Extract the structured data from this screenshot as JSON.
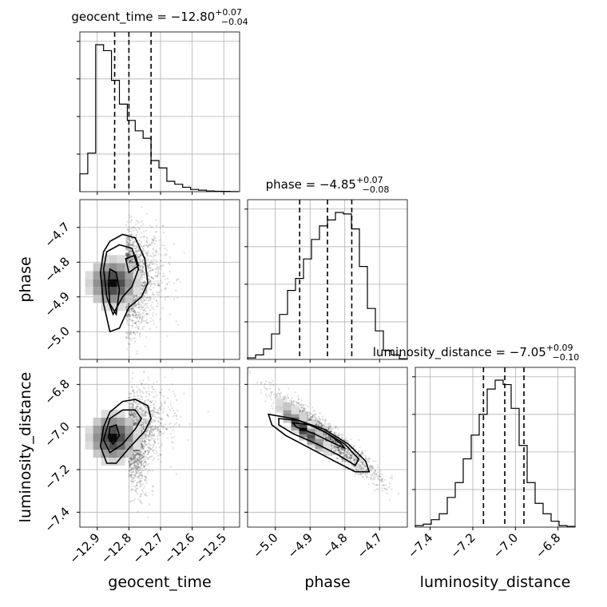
{
  "chart_data": {
    "type": "corner",
    "parameters": [
      "geocent_time",
      "phase",
      "luminosity_distance"
    ],
    "diagonal": [
      {
        "param": "geocent_time",
        "title_main": "geocent_time = −12.80",
        "title_sup": "+0.07",
        "title_sub": "−0.04",
        "median": -12.8,
        "q_low": -12.845,
        "q_high": -12.73,
        "range": [
          -12.955,
          -12.45
        ],
        "bins": [
          -12.955,
          -12.93,
          -12.905,
          -12.88,
          -12.855,
          -12.83,
          -12.805,
          -12.78,
          -12.755,
          -12.73,
          -12.705,
          -12.68,
          -12.655,
          -12.63,
          -12.605,
          -12.58,
          -12.555,
          -12.53,
          -12.505,
          -12.48,
          -12.455
        ],
        "counts": [
          0.12,
          0.26,
          0.99,
          0.95,
          0.75,
          0.59,
          0.48,
          0.41,
          0.36,
          0.21,
          0.16,
          0.07,
          0.05,
          0.03,
          0.015,
          0.01,
          0.005,
          0.003,
          0.002,
          0.0005
        ]
      },
      {
        "param": "phase",
        "title_main": "phase = −4.85",
        "title_sup": "+0.07",
        "title_sub": "−0.08",
        "median": -4.85,
        "q_low": -4.93,
        "q_high": -4.78,
        "range": [
          -5.08,
          -4.62
        ],
        "bins": [
          -5.08,
          -5.057,
          -5.034,
          -5.011,
          -4.988,
          -4.965,
          -4.942,
          -4.919,
          -4.896,
          -4.873,
          -4.85,
          -4.827,
          -4.804,
          -4.781,
          -4.758,
          -4.735,
          -4.712,
          -4.689,
          -4.666,
          -4.643,
          -4.62
        ],
        "counts": [
          0.01,
          0.03,
          0.07,
          0.17,
          0.3,
          0.46,
          0.54,
          0.67,
          0.8,
          0.89,
          0.93,
          0.98,
          0.97,
          0.87,
          0.62,
          0.34,
          0.19,
          0.06,
          0.03,
          0.005
        ]
      },
      {
        "param": "luminosity_distance",
        "title_main": "luminosity_distance = −7.05",
        "title_sup": "+0.09",
        "title_sub": "−0.10",
        "median": -7.05,
        "q_low": -7.15,
        "q_high": -6.96,
        "range": [
          -7.47,
          -6.72
        ],
        "bins": [
          -7.47,
          -7.4325,
          -7.395,
          -7.3575,
          -7.32,
          -7.2825,
          -7.245,
          -7.2075,
          -7.17,
          -7.1325,
          -7.095,
          -7.0575,
          -7.02,
          -6.9825,
          -6.945,
          -6.9075,
          -6.87,
          -6.8325,
          -6.795,
          -6.7575,
          -6.72
        ],
        "counts": [
          0.01,
          0.02,
          0.05,
          0.09,
          0.2,
          0.3,
          0.46,
          0.62,
          0.76,
          0.93,
          0.99,
          0.96,
          0.8,
          0.55,
          0.3,
          0.16,
          0.09,
          0.04,
          0.01,
          0.005
        ]
      }
    ],
    "pairs": [
      {
        "x": "geocent_time",
        "y": "phase",
        "xlim": [
          -12.955,
          -12.45
        ],
        "ylim": [
          -5.08,
          -4.62
        ],
        "center": [
          -12.81,
          -4.85
        ],
        "sx": 0.045,
        "sy": 0.07,
        "rho": 0.1,
        "density_peak": [
          -12.85,
          -4.86
        ],
        "contours": [
          [
            [
              -12.86,
              -4.74
            ],
            [
              -12.82,
              -4.72
            ],
            [
              -12.78,
              -4.73
            ],
            [
              -12.75,
              -4.79
            ],
            [
              -12.74,
              -4.86
            ],
            [
              -12.76,
              -4.9
            ],
            [
              -12.8,
              -4.93
            ],
            [
              -12.83,
              -4.99
            ],
            [
              -12.86,
              -5.0
            ],
            [
              -12.88,
              -4.92
            ],
            [
              -12.89,
              -4.83
            ],
            [
              -12.88,
              -4.77
            ]
          ],
          [
            [
              -12.87,
              -4.77
            ],
            [
              -12.83,
              -4.75
            ],
            [
              -12.79,
              -4.76
            ],
            [
              -12.77,
              -4.82
            ],
            [
              -12.79,
              -4.87
            ],
            [
              -12.82,
              -4.9
            ],
            [
              -12.85,
              -4.95
            ],
            [
              -12.87,
              -4.9
            ],
            [
              -12.88,
              -4.82
            ]
          ],
          [
            [
              -12.86,
              -4.82
            ],
            [
              -12.84,
              -4.83
            ],
            [
              -12.83,
              -4.88
            ],
            [
              -12.84,
              -4.95
            ],
            [
              -12.86,
              -4.92
            ],
            [
              -12.865,
              -4.86
            ]
          ],
          [
            [
              -12.81,
              -4.79
            ],
            [
              -12.78,
              -4.78
            ],
            [
              -12.77,
              -4.81
            ],
            [
              -12.8,
              -4.83
            ]
          ]
        ]
      },
      {
        "x": "geocent_time",
        "y": "luminosity_distance",
        "xlim": [
          -12.955,
          -12.45
        ],
        "ylim": [
          -7.47,
          -6.72
        ],
        "center": [
          -12.8,
          -7.05
        ],
        "sx": 0.045,
        "sy": 0.11,
        "rho": 0.45,
        "density_peak": [
          -12.85,
          -7.05
        ],
        "contours": [
          [
            [
              -12.86,
              -6.93
            ],
            [
              -12.82,
              -6.88
            ],
            [
              -12.78,
              -6.87
            ],
            [
              -12.74,
              -6.9
            ],
            [
              -12.73,
              -6.96
            ],
            [
              -12.75,
              -7.02
            ],
            [
              -12.8,
              -7.1
            ],
            [
              -12.84,
              -7.17
            ],
            [
              -12.87,
              -7.17
            ],
            [
              -12.89,
              -7.09
            ],
            [
              -12.88,
              -7.0
            ]
          ],
          [
            [
              -12.86,
              -6.96
            ],
            [
              -12.82,
              -6.92
            ],
            [
              -12.78,
              -6.92
            ],
            [
              -12.76,
              -6.96
            ],
            [
              -12.78,
              -7.01
            ],
            [
              -12.82,
              -7.08
            ],
            [
              -12.86,
              -7.12
            ],
            [
              -12.88,
              -7.06
            ]
          ],
          [
            [
              -12.86,
              -7.0
            ],
            [
              -12.84,
              -6.99
            ],
            [
              -12.83,
              -7.04
            ],
            [
              -12.85,
              -7.08
            ],
            [
              -12.865,
              -7.05
            ]
          ]
        ]
      },
      {
        "x": "phase",
        "y": "luminosity_distance",
        "xlim": [
          -5.08,
          -4.62
        ],
        "ylim": [
          -7.47,
          -6.72
        ],
        "center": [
          -4.85,
          -7.05
        ],
        "sx": 0.075,
        "sy": 0.1,
        "rho": -0.95,
        "density_peak": [
          -4.92,
          -7.0
        ],
        "contours": [
          [
            [
              -5.02,
              -6.94
            ],
            [
              -4.95,
              -6.96
            ],
            [
              -4.86,
              -7.01
            ],
            [
              -4.79,
              -7.08
            ],
            [
              -4.74,
              -7.16
            ],
            [
              -4.73,
              -7.21
            ],
            [
              -4.77,
              -7.21
            ],
            [
              -4.83,
              -7.16
            ],
            [
              -4.9,
              -7.1
            ],
            [
              -4.97,
              -7.04
            ],
            [
              -5.01,
              -6.99
            ]
          ],
          [
            [
              -4.99,
              -6.96
            ],
            [
              -4.93,
              -6.97
            ],
            [
              -4.86,
              -7.02
            ],
            [
              -4.8,
              -7.08
            ],
            [
              -4.76,
              -7.15
            ],
            [
              -4.77,
              -7.18
            ],
            [
              -4.82,
              -7.13
            ],
            [
              -4.88,
              -7.08
            ],
            [
              -4.95,
              -7.03
            ],
            [
              -4.99,
              -6.99
            ]
          ],
          [
            [
              -4.95,
              -6.98
            ],
            [
              -4.9,
              -6.99
            ],
            [
              -4.85,
              -7.03
            ],
            [
              -4.81,
              -7.08
            ],
            [
              -4.8,
              -7.1
            ],
            [
              -4.84,
              -7.07
            ],
            [
              -4.89,
              -7.03
            ],
            [
              -4.94,
              -7.0
            ]
          ]
        ]
      }
    ],
    "axis_labels": {
      "geocent_time": "geocent_time",
      "phase": "phase",
      "luminosity_distance": "luminosity_distance"
    },
    "ticks": {
      "geocent_time": [
        "−12.9",
        "−12.8",
        "−12.7",
        "−12.6",
        "−12.5"
      ],
      "phase": [
        "−5.0",
        "−4.9",
        "−4.8",
        "−4.7"
      ],
      "luminosity_distance": [
        "−7.4",
        "−7.2",
        "−7.0",
        "−6.8"
      ]
    },
    "tick_values": {
      "geocent_time": [
        -12.9,
        -12.8,
        -12.7,
        -12.6,
        -12.5
      ],
      "phase": [
        -5.0,
        -4.9,
        -4.8,
        -4.7
      ],
      "luminosity_distance": [
        -7.4,
        -7.2,
        -7.0,
        -6.8
      ]
    },
    "grid": true,
    "colors": {
      "lines": "#000000",
      "points": "#000000",
      "grid": "#b0b0b0"
    }
  }
}
